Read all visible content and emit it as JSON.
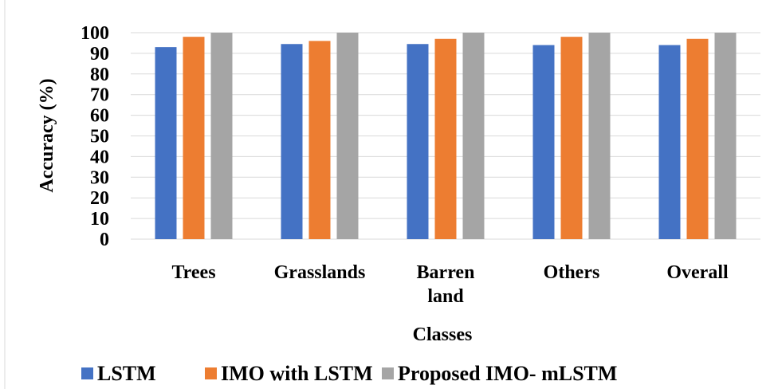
{
  "chart_data": {
    "type": "bar",
    "categories": [
      [
        "Trees"
      ],
      [
        "Grasslands"
      ],
      [
        "Barren",
        "land"
      ],
      [
        "Others"
      ],
      [
        "Overall"
      ]
    ],
    "series": [
      {
        "name": "LSTM",
        "color": "#4472c4",
        "values": [
          93,
          94.5,
          94.5,
          94,
          94
        ]
      },
      {
        "name": "IMO with LSTM",
        "color": "#ed7d31",
        "values": [
          98,
          96,
          97,
          98,
          97
        ]
      },
      {
        "name": "Proposed IMO- mLSTM",
        "color": "#a5a5a5",
        "values": [
          100,
          100,
          100,
          100,
          100
        ]
      }
    ],
    "xlabel": "Classes",
    "ylabel": "Accuracy (%)",
    "ylim": [
      0,
      100
    ],
    "yticks": [
      0,
      10,
      20,
      30,
      40,
      50,
      60,
      70,
      80,
      90,
      100
    ],
    "grid": true,
    "legend_position": "bottom"
  }
}
